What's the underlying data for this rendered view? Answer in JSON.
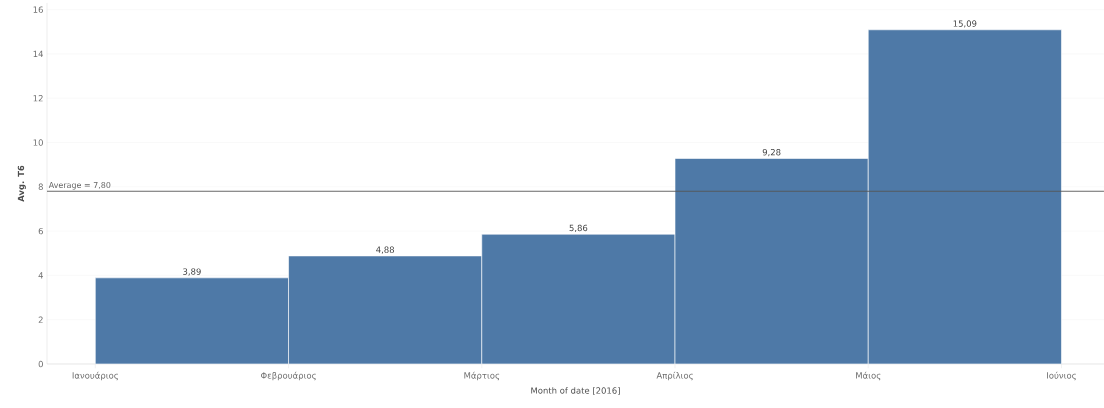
{
  "chart_data": {
    "type": "bar",
    "xlabel": "Month of date [2016]",
    "ylabel": "Avg. T6",
    "categories": [
      "Ιανουάριος",
      "Φεβρουάριος",
      "Μάρτιος",
      "Απρίλιος",
      "Μάιος",
      "Ιούνιος"
    ],
    "values": [
      3.89,
      4.88,
      5.86,
      9.28,
      15.09,
      null
    ],
    "value_labels": [
      "3,89",
      "4,88",
      "5,86",
      "9,28",
      "15,09",
      null
    ],
    "color": "#4e79a7",
    "ylim": [
      0,
      16.3
    ],
    "yticks": [
      0,
      2,
      4,
      6,
      8,
      10,
      12,
      14,
      16
    ],
    "grid": "y",
    "ref_lines": [
      {
        "axis": "y",
        "value": 7.8,
        "label": "Average = 7,80",
        "color": "#555555"
      }
    ]
  }
}
